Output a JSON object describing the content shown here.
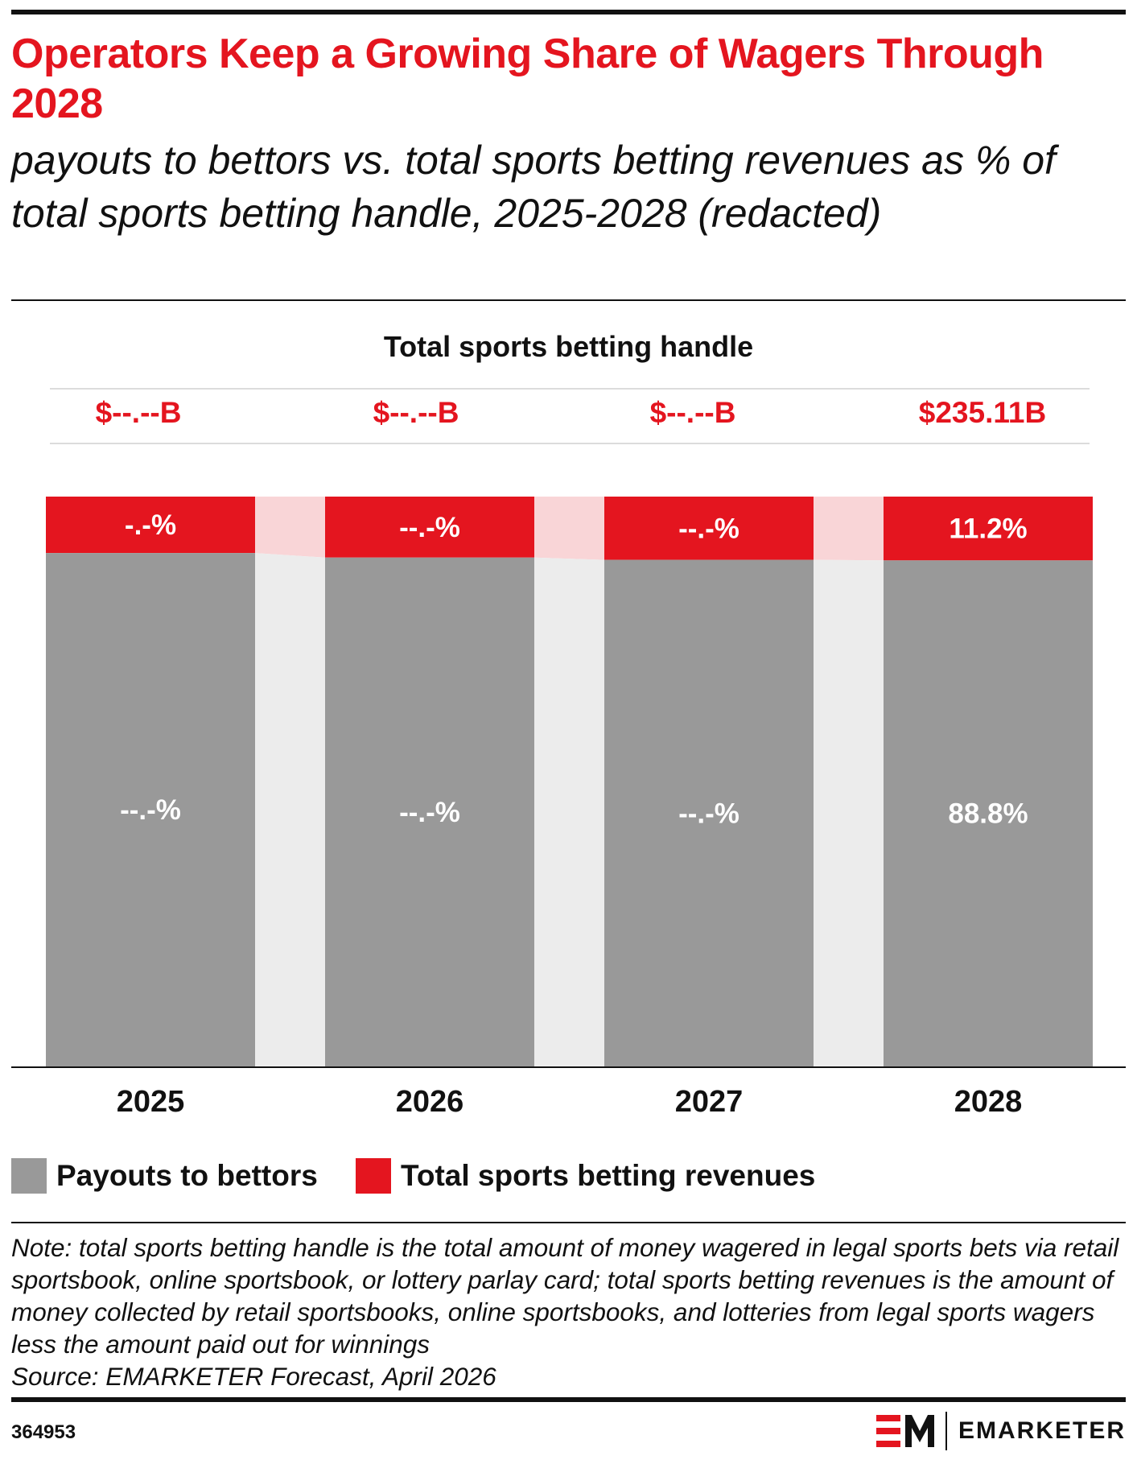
{
  "title": "Operators Keep a Growing Share of Wagers Through 2028",
  "subtitle": "payouts to bettors vs. total sports betting revenues as % of total sports betting handle, 2025-2028 (redacted)",
  "handle_heading": "Total sports betting handle",
  "colors": {
    "accent_red": "#e4151f",
    "payout_gray": "#999999",
    "connector_pink": "#f9d5d7",
    "connector_gray": "#ececec"
  },
  "chart_data": {
    "type": "bar",
    "stacked": true,
    "categories": [
      "2025",
      "2026",
      "2027",
      "2028"
    ],
    "handle": [
      "$--.--B",
      "$--.--B",
      "$--.--B",
      "$235.11B"
    ],
    "series": [
      {
        "name": "Payouts to bettors",
        "color": "#999999",
        "values": [
          90.1,
          89.3,
          88.9,
          88.8
        ],
        "labels": [
          "--.-%",
          "--.-%",
          "--.-%",
          "88.8%"
        ]
      },
      {
        "name": "Total sports betting revenues",
        "color": "#e4151f",
        "values": [
          9.9,
          10.7,
          11.1,
          11.2
        ],
        "labels": [
          "-.-%",
          "--.-%",
          "--.-%",
          "11.2%"
        ]
      }
    ],
    "ylim": [
      0,
      100
    ],
    "legend_position": "bottom-left"
  },
  "note": "Note: total sports betting handle is the total amount of money wagered in legal sports bets via retail sportsbook, online sportsbook, or lottery parlay card; total sports betting revenues is the amount of money collected by retail sportsbooks, online sportsbooks, and lotteries from legal sports wagers less the amount paid out for winnings",
  "source": "Source: EMARKETER Forecast, April 2026",
  "chart_id": "364953",
  "brand": "EMARKETER",
  "logo_mark": "EM"
}
